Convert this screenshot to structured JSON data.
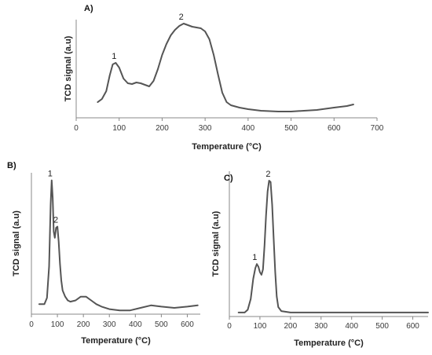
{
  "chart_data": [
    {
      "type": "line",
      "panel_label": "A)",
      "xlabel": "Temperature (°C)",
      "ylabel": "TCD signal (a.u)",
      "xlim": [
        0,
        700
      ],
      "x_ticks": [
        0,
        100,
        200,
        300,
        400,
        500,
        600,
        700
      ],
      "grid": false,
      "ylim": [
        -0.2,
        1.05
      ],
      "series": [
        {
          "x": [
            50,
            60,
            70,
            78,
            85,
            92,
            100,
            110,
            120,
            130,
            140,
            150,
            160,
            170,
            180,
            190,
            200,
            210,
            220,
            230,
            240,
            250,
            260,
            270,
            280,
            290,
            300,
            310,
            320,
            330,
            340,
            350,
            360,
            380,
            400,
            430,
            470,
            500,
            530,
            560,
            600,
            630,
            645
          ],
          "y": [
            0.0,
            0.04,
            0.14,
            0.34,
            0.48,
            0.5,
            0.44,
            0.3,
            0.24,
            0.23,
            0.25,
            0.24,
            0.22,
            0.2,
            0.27,
            0.42,
            0.6,
            0.74,
            0.85,
            0.92,
            0.97,
            1.0,
            0.98,
            0.96,
            0.95,
            0.94,
            0.9,
            0.8,
            0.6,
            0.35,
            0.12,
            0.0,
            -0.04,
            -0.07,
            -0.09,
            -0.11,
            -0.12,
            -0.12,
            -0.11,
            -0.1,
            -0.07,
            -0.05,
            -0.03
          ]
        }
      ],
      "annotations": [
        {
          "text": "1",
          "x": 92,
          "y": 0.5
        },
        {
          "text": "2",
          "x": 248,
          "y": 1.0
        }
      ]
    },
    {
      "type": "line",
      "panel_label": "B)",
      "xlabel": "Temperature (°C)",
      "ylabel": "TCD signal (a.u)",
      "xlim": [
        0,
        650
      ],
      "x_ticks": [
        0,
        100,
        200,
        300,
        400,
        500,
        600
      ],
      "grid": false,
      "ylim": [
        -0.08,
        1.05
      ],
      "series": [
        {
          "x": [
            30,
            50,
            60,
            68,
            74,
            78,
            82,
            86,
            90,
            95,
            100,
            105,
            110,
            115,
            120,
            130,
            140,
            150,
            170,
            190,
            210,
            230,
            250,
            270,
            300,
            340,
            380,
            420,
            460,
            500,
            550,
            600,
            640
          ],
          "y": [
            0.0,
            0.0,
            0.05,
            0.3,
            0.8,
            0.99,
            0.85,
            0.58,
            0.53,
            0.61,
            0.62,
            0.5,
            0.32,
            0.19,
            0.11,
            0.06,
            0.03,
            0.02,
            0.03,
            0.06,
            0.06,
            0.03,
            0.0,
            -0.02,
            -0.04,
            -0.05,
            -0.05,
            -0.03,
            -0.01,
            -0.02,
            -0.03,
            -0.02,
            -0.01
          ]
        }
      ],
      "annotations": [
        {
          "text": "1",
          "x": 78,
          "y": 0.99
        },
        {
          "text": "2",
          "x": 100,
          "y": 0.62
        }
      ]
    },
    {
      "type": "line",
      "panel_label": "C)",
      "xlabel": "Temperature (°C)",
      "ylabel": "TCD signal (a.u)",
      "xlim": [
        0,
        650
      ],
      "x_ticks": [
        0,
        100,
        200,
        300,
        400,
        500,
        600
      ],
      "grid": false,
      "ylim": [
        -0.03,
        1.05
      ],
      "series": [
        {
          "x": [
            30,
            50,
            60,
            70,
            78,
            85,
            90,
            95,
            100,
            105,
            110,
            115,
            120,
            125,
            130,
            135,
            140,
            145,
            150,
            155,
            160,
            170,
            200,
            300,
            400,
            500,
            600,
            650
          ],
          "y": [
            0.0,
            0.0,
            0.02,
            0.1,
            0.25,
            0.33,
            0.36,
            0.34,
            0.3,
            0.28,
            0.32,
            0.5,
            0.72,
            0.9,
            0.98,
            0.97,
            0.8,
            0.55,
            0.3,
            0.12,
            0.04,
            0.01,
            0.0,
            0.0,
            0.0,
            0.0,
            0.0,
            0.0
          ]
        }
      ],
      "annotations": [
        {
          "text": "1",
          "x": 88,
          "y": 0.36
        },
        {
          "text": "2",
          "x": 132,
          "y": 0.98
        }
      ]
    }
  ]
}
